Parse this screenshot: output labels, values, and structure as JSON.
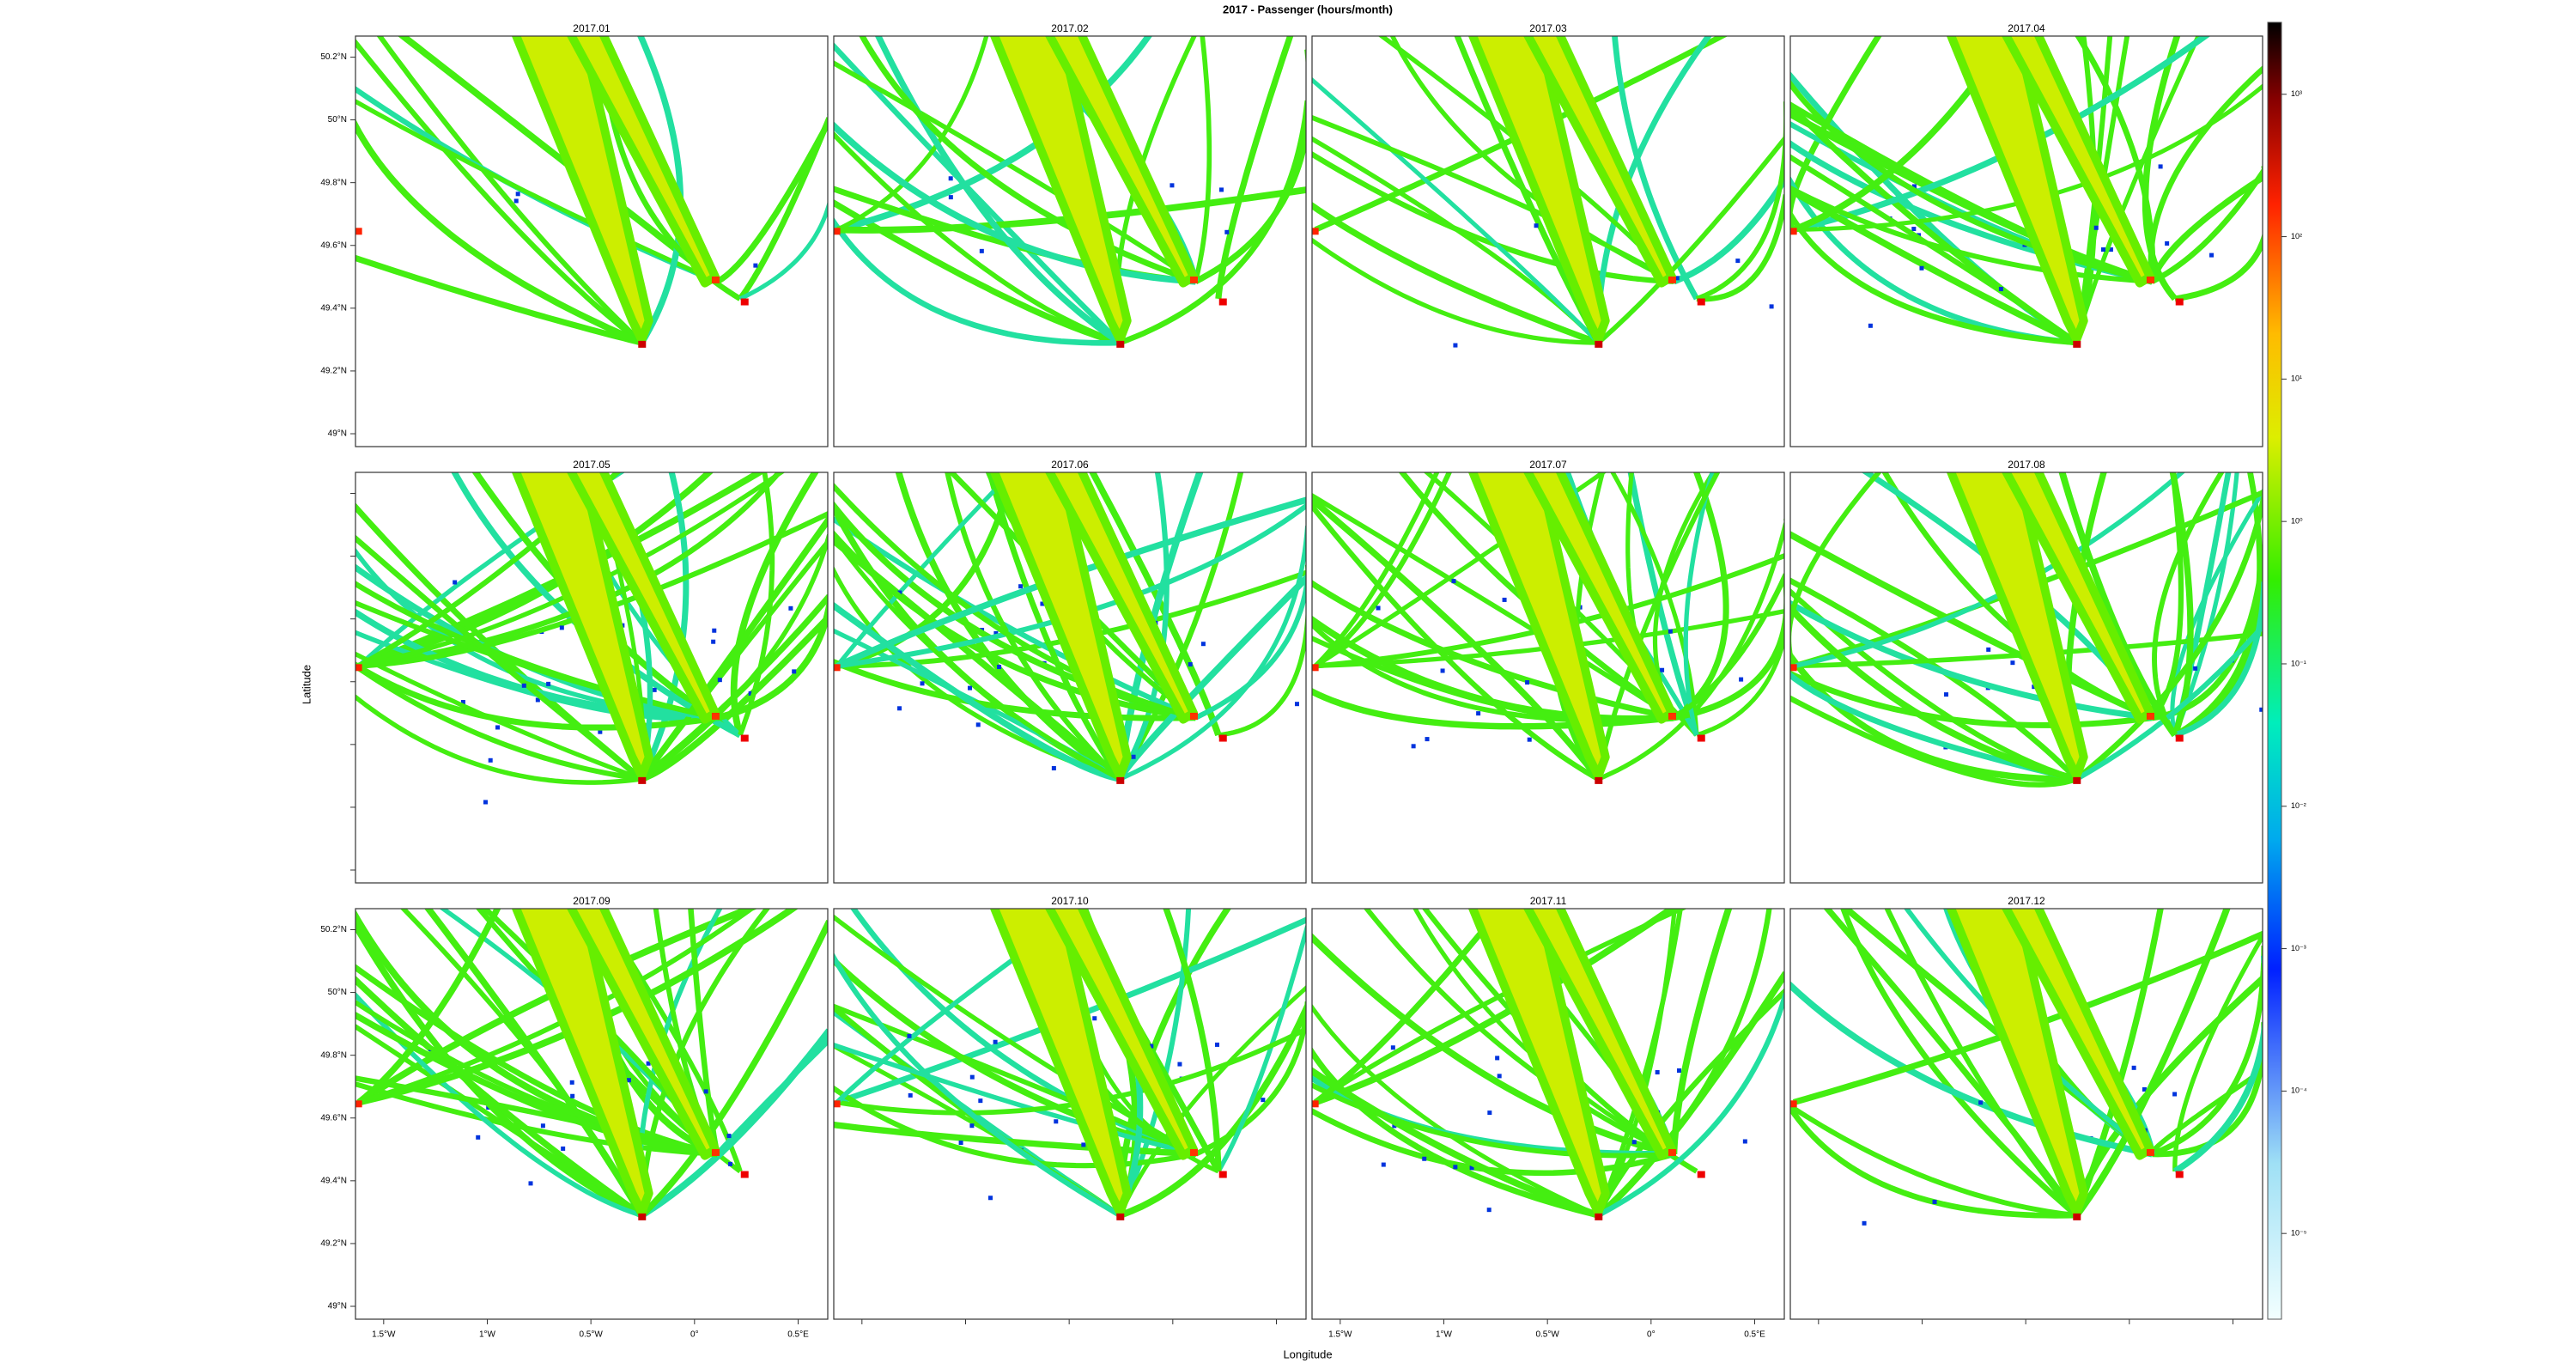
{
  "title": "2017 - Passenger (hours/month)",
  "x_label": "Longitude",
  "y_label": "Latitude",
  "panels": [
    "2017.01",
    "2017.02",
    "2017.03",
    "2017.04",
    "2017.05",
    "2017.06",
    "2017.07",
    "2017.08",
    "2017.09",
    "2017.10",
    "2017.11",
    "2017.12"
  ],
  "xlim": [
    -1.636,
    0.643
  ],
  "ylim": [
    48.959,
    50.267
  ],
  "xticks": [
    {
      "value": -1.5,
      "label": "1.5°W"
    },
    {
      "value": -1,
      "label": "1°W"
    },
    {
      "value": -0.5,
      "label": "0.5°W"
    },
    {
      "value": 0,
      "label": "0°"
    },
    {
      "value": 0.5,
      "label": "0.5°E"
    }
  ],
  "yticks": [
    {
      "value": 49,
      "label": "49°N"
    },
    {
      "value": 49.2,
      "label": "49.2°N"
    },
    {
      "value": 49.4,
      "label": "49.4°N"
    },
    {
      "value": 49.6,
      "label": "49.6°N"
    },
    {
      "value": 49.8,
      "label": "49.8°N"
    },
    {
      "value": 50,
      "label": "50°N"
    },
    {
      "value": 50.2,
      "label": "50.2°N"
    }
  ],
  "colorbar": {
    "log": true,
    "lim": [
      2.5e-06,
      3200
    ],
    "ticks": [
      {
        "value": 1000,
        "label": "10³"
      },
      {
        "value": 100,
        "label": "10²"
      },
      {
        "value": 10,
        "label": "10¹"
      },
      {
        "value": 1,
        "label": "10⁰"
      },
      {
        "value": 0.1,
        "label": "10⁻¹"
      },
      {
        "value": 0.01,
        "label": "10⁻²"
      },
      {
        "value": 0.001,
        "label": "10⁻³"
      },
      {
        "value": 0.0001,
        "label": "10⁻⁴"
      },
      {
        "value": 1e-05,
        "label": "10⁻⁵"
      }
    ]
  }
}
